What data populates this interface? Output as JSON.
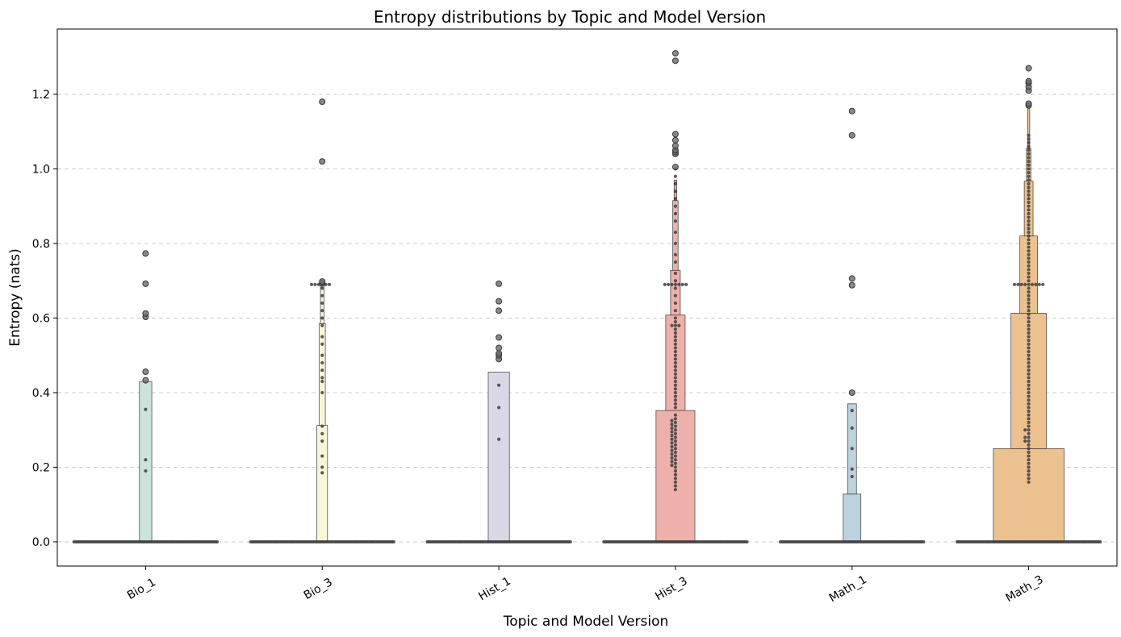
{
  "chart_data": {
    "type": "boxen",
    "title": "Entropy distributions by Topic and Model Version",
    "xlabel": "Topic and Model Version",
    "ylabel": "Entropy (nats)",
    "ylim": [
      -0.065,
      1.375
    ],
    "yticks": [
      0.0,
      0.2,
      0.4,
      0.6,
      0.8,
      1.0,
      1.2
    ],
    "ytick_labels": [
      "0.0",
      "0.2",
      "0.4",
      "0.6",
      "0.8",
      "1.0",
      "1.2"
    ],
    "grid": "y-dashed",
    "categories": [
      "Bio_1",
      "Bio_3",
      "Hist_1",
      "Hist_3",
      "Math_1",
      "Math_3"
    ],
    "colors": [
      "#cce3dd",
      "#f8f6d8",
      "#dbd8e6",
      "#eeb0aa",
      "#bed1df",
      "#ebc18f"
    ],
    "series": [
      {
        "name": "Bio_1",
        "boxes": [
          {
            "low": 0.0,
            "high": 0.43,
            "width_frac": 0.07
          }
        ],
        "zero_count": 80,
        "nonzero_points": [
          0.19,
          0.22,
          0.355
        ],
        "outliers": [
          0.433,
          0.456,
          0.603,
          0.612,
          0.692,
          0.773
        ]
      },
      {
        "name": "Bio_3",
        "boxes": [
          {
            "low": 0.0,
            "high": 0.312,
            "width_frac": 0.06
          },
          {
            "low": 0.312,
            "high": 0.585,
            "width_frac": 0.035
          },
          {
            "low": 0.585,
            "high": 0.69,
            "width_frac": 0.02
          }
        ],
        "zero_count": 80,
        "nonzero_points": [
          0.185,
          0.2,
          0.23,
          0.27,
          0.29,
          0.31,
          0.4,
          0.43,
          0.44,
          0.46,
          0.48,
          0.5,
          0.53,
          0.55,
          0.58,
          0.6,
          0.62,
          0.64,
          0.66,
          0.68,
          0.69,
          0.69,
          0.69,
          0.69,
          0.69,
          0.69
        ],
        "outliers": [
          0.693,
          0.698,
          1.02,
          1.18
        ]
      },
      {
        "name": "Hist_1",
        "boxes": [
          {
            "low": 0.0,
            "high": 0.455,
            "width_frac": 0.12
          }
        ],
        "zero_count": 80,
        "nonzero_points": [
          0.275,
          0.36,
          0.42
        ],
        "outliers": [
          0.49,
          0.5,
          0.505,
          0.52,
          0.548,
          0.62,
          0.645,
          0.692
        ]
      },
      {
        "name": "Hist_3",
        "boxes": [
          {
            "low": 0.0,
            "high": 0.352,
            "width_frac": 0.22
          },
          {
            "low": 0.352,
            "high": 0.608,
            "width_frac": 0.11
          },
          {
            "low": 0.608,
            "high": 0.728,
            "width_frac": 0.055
          },
          {
            "low": 0.728,
            "high": 0.915,
            "width_frac": 0.03
          },
          {
            "low": 0.915,
            "high": 0.97,
            "width_frac": 0.015
          }
        ],
        "zero_count": 80,
        "nonzero_points": [
          0.14,
          0.15,
          0.16,
          0.17,
          0.18,
          0.19,
          0.2,
          0.205,
          0.21,
          0.215,
          0.22,
          0.225,
          0.23,
          0.235,
          0.24,
          0.245,
          0.25,
          0.255,
          0.26,
          0.265,
          0.27,
          0.275,
          0.28,
          0.285,
          0.29,
          0.295,
          0.3,
          0.305,
          0.31,
          0.315,
          0.32,
          0.325,
          0.33,
          0.34,
          0.36,
          0.37,
          0.38,
          0.39,
          0.4,
          0.41,
          0.42,
          0.43,
          0.44,
          0.45,
          0.46,
          0.47,
          0.48,
          0.49,
          0.5,
          0.51,
          0.52,
          0.53,
          0.54,
          0.55,
          0.56,
          0.57,
          0.58,
          0.58,
          0.58,
          0.59,
          0.6,
          0.62,
          0.64,
          0.66,
          0.68,
          0.69,
          0.69,
          0.69,
          0.69,
          0.69,
          0.69,
          0.69,
          0.7,
          0.72,
          0.75,
          0.77,
          0.8,
          0.83,
          0.86,
          0.88,
          0.9,
          0.92,
          0.94,
          0.96,
          0.98,
          1.0
        ],
        "outliers": [
          1.005,
          1.04,
          1.045,
          1.05,
          1.062,
          1.077,
          1.093,
          1.29,
          1.31
        ]
      },
      {
        "name": "Math_1",
        "boxes": [
          {
            "low": 0.0,
            "high": 0.128,
            "width_frac": 0.1
          },
          {
            "low": 0.128,
            "high": 0.37,
            "width_frac": 0.05
          }
        ],
        "zero_count": 80,
        "nonzero_points": [
          0.175,
          0.195,
          0.25,
          0.305,
          0.352
        ],
        "outliers": [
          0.4,
          0.688,
          0.706,
          1.09,
          1.155
        ]
      },
      {
        "name": "Math_3",
        "boxes": [
          {
            "low": 0.0,
            "high": 0.25,
            "width_frac": 0.4
          },
          {
            "low": 0.25,
            "high": 0.613,
            "width_frac": 0.2
          },
          {
            "low": 0.613,
            "high": 0.82,
            "width_frac": 0.1
          },
          {
            "low": 0.82,
            "high": 0.967,
            "width_frac": 0.05
          },
          {
            "low": 0.967,
            "high": 1.055,
            "width_frac": 0.025
          },
          {
            "low": 1.055,
            "high": 1.165,
            "width_frac": 0.012
          }
        ],
        "zero_count": 80,
        "nonzero_points": [
          0.16,
          0.17,
          0.18,
          0.19,
          0.2,
          0.21,
          0.22,
          0.23,
          0.24,
          0.25,
          0.26,
          0.27,
          0.27,
          0.28,
          0.28,
          0.29,
          0.3,
          0.3,
          0.31,
          0.32,
          0.33,
          0.34,
          0.35,
          0.36,
          0.37,
          0.38,
          0.39,
          0.4,
          0.41,
          0.42,
          0.43,
          0.44,
          0.45,
          0.46,
          0.47,
          0.48,
          0.49,
          0.5,
          0.51,
          0.52,
          0.53,
          0.54,
          0.55,
          0.56,
          0.57,
          0.58,
          0.59,
          0.6,
          0.61,
          0.62,
          0.63,
          0.64,
          0.65,
          0.66,
          0.67,
          0.68,
          0.69,
          0.69,
          0.69,
          0.69,
          0.69,
          0.69,
          0.69,
          0.69,
          0.69,
          0.7,
          0.71,
          0.72,
          0.73,
          0.74,
          0.75,
          0.76,
          0.77,
          0.78,
          0.79,
          0.8,
          0.81,
          0.82,
          0.83,
          0.84,
          0.85,
          0.86,
          0.87,
          0.88,
          0.89,
          0.9,
          0.91,
          0.92,
          0.93,
          0.94,
          0.95,
          0.96,
          0.97,
          0.98,
          0.99,
          1.0,
          1.01,
          1.02,
          1.03,
          1.04,
          1.05,
          1.06,
          1.07,
          1.08,
          1.09
        ],
        "outliers": [
          1.17,
          1.175,
          1.21,
          1.22,
          1.23,
          1.235,
          1.27
        ]
      }
    ]
  }
}
